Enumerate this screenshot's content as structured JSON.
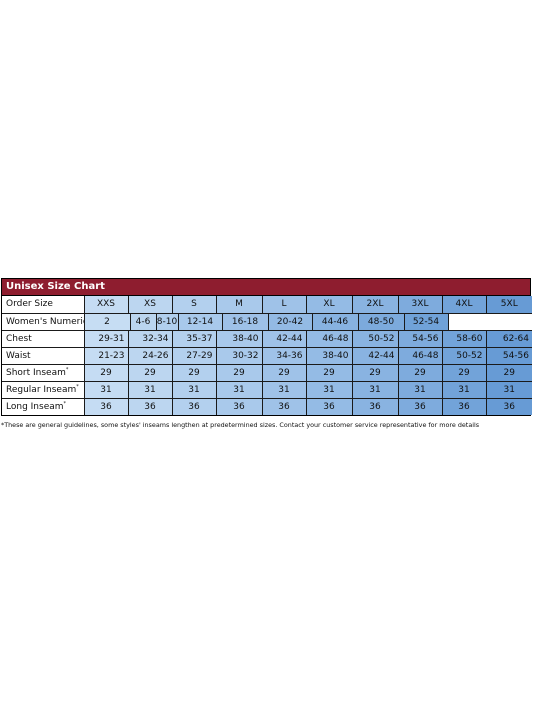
{
  "title": "Unisex Size Chart",
  "rows": [
    {
      "label": "Order Size",
      "cells": [
        "XXS",
        "XS",
        "S",
        "M",
        "L",
        "XL",
        "2XL",
        "3XL",
        "4XL",
        "5XL"
      ]
    },
    {
      "label": "Women's Numeric Sizes",
      "cells": [
        "2",
        "4-6",
        "8-10",
        "12-14",
        "16-18",
        "20-42",
        "44-46",
        "48-50",
        "52-54"
      ]
    },
    {
      "label": "Chest",
      "cells": [
        "29-31",
        "32-34",
        "35-37",
        "38-40",
        "42-44",
        "46-48",
        "50-52",
        "54-56",
        "58-60",
        "62-64"
      ]
    },
    {
      "label": "Waist",
      "cells": [
        "21-23",
        "24-26",
        "27-29",
        "30-32",
        "34-36",
        "38-40",
        "42-44",
        "46-48",
        "50-52",
        "54-56"
      ]
    },
    {
      "label": "Short Inseam",
      "mark": "*",
      "cells": [
        "29",
        "29",
        "29",
        "29",
        "29",
        "29",
        "29",
        "29",
        "29",
        "29"
      ]
    },
    {
      "label": "Regular Inseam",
      "mark": "*",
      "cells": [
        "31",
        "31",
        "31",
        "31",
        "31",
        "31",
        "31",
        "31",
        "31",
        "31"
      ]
    },
    {
      "label": "Long Inseam",
      "mark": "*",
      "cells": [
        "36",
        "36",
        "36",
        "36",
        "36",
        "36",
        "36",
        "36",
        "36",
        "36"
      ]
    }
  ],
  "colors": {
    "title_bar": "#8e1d2f",
    "column_shades": [
      "#c5dcf3",
      "#bcd6f0",
      "#b3d0ee",
      "#a9c9eb",
      "#9fc2e8",
      "#94bbe5",
      "#89b3e1",
      "#7eabdd",
      "#72a3d9",
      "#679bd5"
    ],
    "numeric_shades": [
      "#c6ddf3",
      "#bad5ef",
      "#b1cfed",
      "#a8c9eb",
      "#9ec1e8",
      "#93bae4",
      "#87b2e0",
      "#7caadc",
      "#70a2d8"
    ]
  },
  "footnote": "*These are general guidelines, some styles' inseams lengthen at predetermined sizes.  Contact your customer service representative for more details"
}
